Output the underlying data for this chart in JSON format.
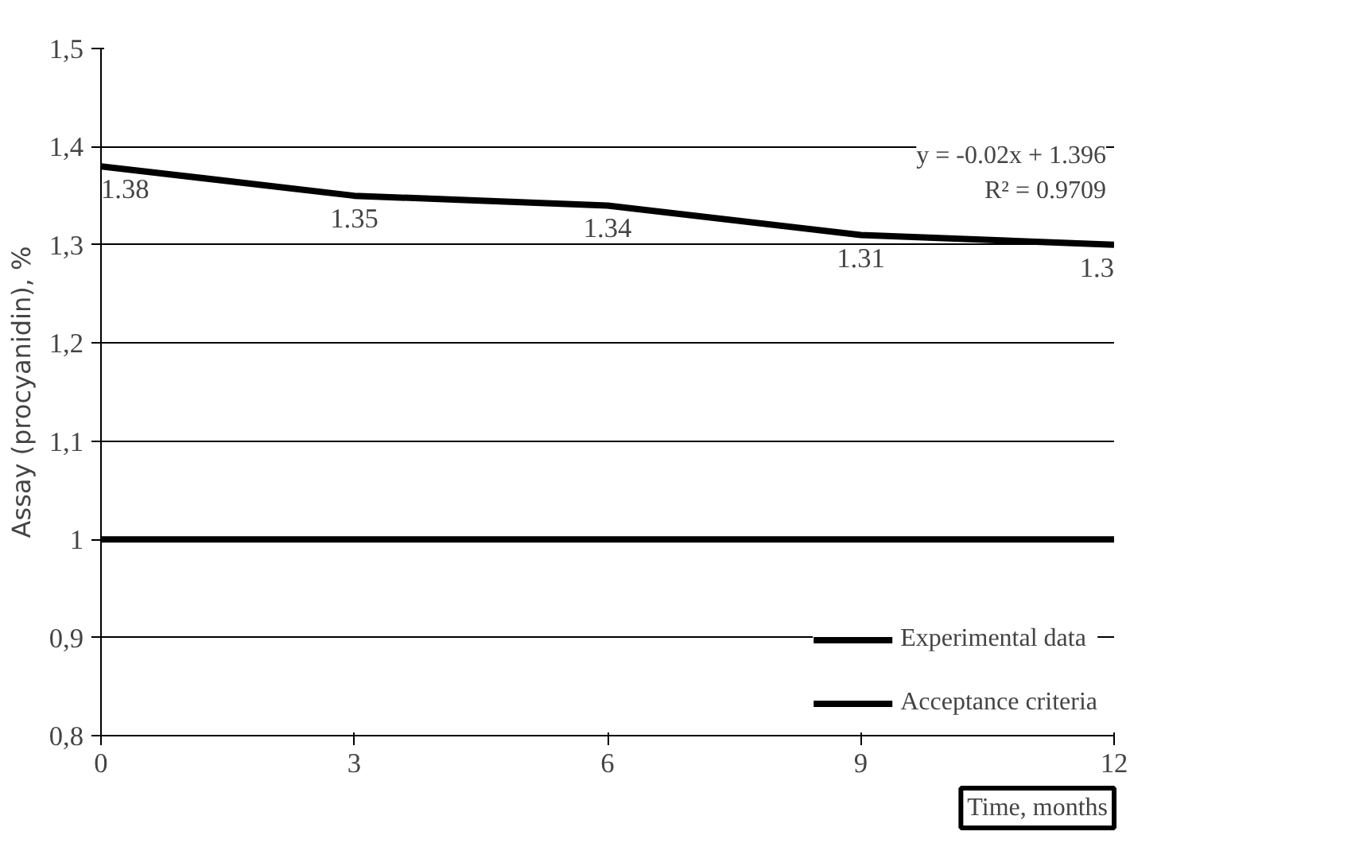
{
  "chart_data": {
    "type": "line",
    "ylabel": "Assay (procyanidin), %",
    "xlabel": "Time, months",
    "x": [
      0,
      3,
      6,
      9,
      12
    ],
    "series": [
      {
        "name": "Experimental data",
        "color": "#000000",
        "values": [
          1.38,
          1.35,
          1.34,
          1.31,
          1.3
        ],
        "value_labels": [
          "1.38",
          "1.35",
          "1.34",
          "1.31",
          "1.3"
        ]
      },
      {
        "name": "Acceptance criteria",
        "color": "#000000",
        "values": [
          1,
          1,
          1,
          1,
          1
        ]
      }
    ],
    "annotations": [
      "y = -0.02x + 1.396",
      "R² = 0.9709"
    ],
    "xlim": [
      0,
      12
    ],
    "xticks": [
      0,
      3,
      6,
      9,
      12
    ],
    "ylim": [
      0.8,
      1.5
    ],
    "yticks": [
      {
        "value": 0.8,
        "label": "0,8"
      },
      {
        "value": 0.9,
        "label": "0,9"
      },
      1,
      {
        "value": 1.1,
        "label": "1,1"
      },
      {
        "value": 1.2,
        "label": "1,2"
      },
      {
        "value": 1.3,
        "label": "1,3"
      },
      {
        "value": 1.4,
        "label": "1,4"
      },
      {
        "value": 1.5,
        "label": "1,5"
      }
    ],
    "grid": "y",
    "legend": "bottom right",
    "marker": "none",
    "line_style": "solid"
  }
}
